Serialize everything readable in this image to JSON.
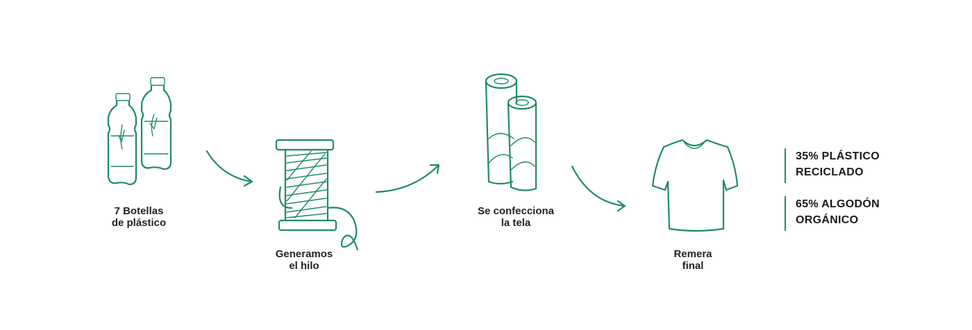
{
  "colors": {
    "accent": "#1e8a63",
    "text": "#222222"
  },
  "steps": [
    {
      "icon": "plastic-bottles-icon",
      "line1": "7 Botellas",
      "line2": "de plástico"
    },
    {
      "icon": "thread-spool-icon",
      "line1": "Generamos",
      "line2": "el hilo"
    },
    {
      "icon": "fabric-rolls-icon",
      "line1": "Se confecciona",
      "line2": "la tela"
    },
    {
      "icon": "t-shirt-icon",
      "line1": "Remera",
      "line2": "final"
    }
  ],
  "composition": [
    {
      "line1": "35% PLÁSTICO",
      "line2": "RECICLADO"
    },
    {
      "line1": "65% ALGODÓN",
      "line2": "ORGÁNICO"
    }
  ]
}
